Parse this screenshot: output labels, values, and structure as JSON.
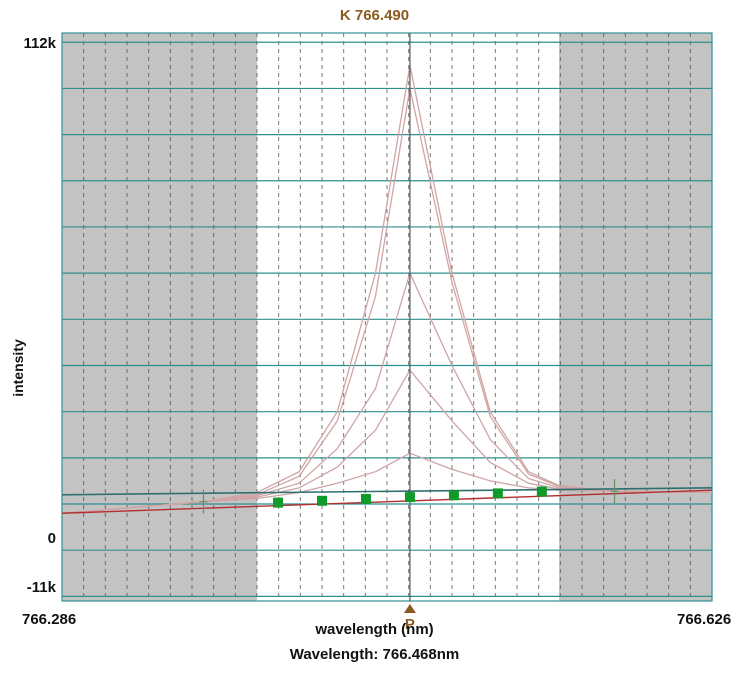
{
  "chart_title": "K 766.490",
  "status_text": "Wavelength: 766.468nm",
  "peak_marker_label": "P",
  "colors": {
    "excluded_region": "#c3c3c3",
    "plot_background": "#ffffff",
    "horizontal_grid": "#2f8f8f",
    "vertical_grid": "#4a4a4a",
    "raw_traces": "#cfa5a5",
    "fit_line": "#b03030",
    "baseline": "#2e7070",
    "points": "#0f9a2a",
    "cursor": "#555555",
    "marker": "#8a5a1e"
  },
  "chart_data": {
    "type": "line",
    "title": "K 766.490",
    "xlabel": "wavelength (nm)",
    "ylabel": "intensity",
    "xlim": [
      766.286,
      766.626
    ],
    "ylim": [
      -11000,
      112000
    ],
    "x_tick_labels": [
      "766.286",
      "766.626"
    ],
    "y_tick_labels": [
      "112k",
      "0",
      "-11k"
    ],
    "grid": true,
    "excluded_regions": [
      [
        766.286,
        766.388
      ],
      [
        766.546,
        766.626
      ]
    ],
    "cursor_wavelength": 766.468,
    "series": [
      {
        "x": [
          766.286,
          766.36,
          766.388,
          766.41,
          766.43,
          766.45,
          766.468,
          766.49,
          766.51,
          766.53,
          766.546,
          766.575,
          766.626
        ],
        "values": [
          8000,
          10500,
          12500,
          17000,
          30000,
          60000,
          105000,
          60000,
          30000,
          17000,
          14000,
          12800,
          12500
        ]
      },
      {
        "x": [
          766.286,
          766.36,
          766.388,
          766.41,
          766.43,
          766.45,
          766.468,
          766.49,
          766.51,
          766.53,
          766.546,
          766.575,
          766.626
        ],
        "values": [
          8000,
          10500,
          12000,
          16000,
          28000,
          55000,
          100000,
          58000,
          29000,
          16500,
          13800,
          12800,
          12500
        ]
      },
      {
        "x": [
          766.286,
          766.36,
          766.388,
          766.41,
          766.43,
          766.45,
          766.468,
          766.49,
          766.51,
          766.53,
          766.546,
          766.575,
          766.626
        ],
        "values": [
          8000,
          10500,
          11800,
          14500,
          22000,
          35000,
          60000,
          40000,
          24000,
          15500,
          13500,
          12800,
          12500
        ]
      },
      {
        "x": [
          766.286,
          766.36,
          766.388,
          766.41,
          766.43,
          766.45,
          766.468,
          766.49,
          766.51,
          766.53,
          766.546,
          766.575,
          766.626
        ],
        "values": [
          8000,
          10500,
          11500,
          13500,
          18000,
          26000,
          39000,
          28000,
          19000,
          14500,
          13200,
          12800,
          12500
        ]
      },
      {
        "x": [
          766.286,
          766.36,
          766.388,
          766.41,
          766.43,
          766.45,
          766.468,
          766.49,
          766.51,
          766.53,
          766.546,
          766.575,
          766.626
        ],
        "values": [
          8000,
          10500,
          11200,
          12500,
          14500,
          17000,
          21000,
          17500,
          15000,
          13500,
          13000,
          12800,
          12500
        ]
      }
    ],
    "fit": {
      "x": [
        766.286,
        766.626
      ],
      "values": [
        8000,
        13000
      ]
    },
    "baseline": {
      "x": [
        766.286,
        766.626
      ],
      "values": [
        12000,
        13500
      ]
    },
    "points": {
      "x": [
        766.399,
        766.422,
        766.445,
        766.468,
        766.491,
        766.514,
        766.537
      ],
      "values": [
        10300,
        10700,
        11100,
        11500,
        11900,
        12300,
        12700
      ]
    },
    "background_markers": {
      "x": [
        766.36,
        766.575
      ],
      "values": [
        10500,
        12800
      ]
    }
  }
}
